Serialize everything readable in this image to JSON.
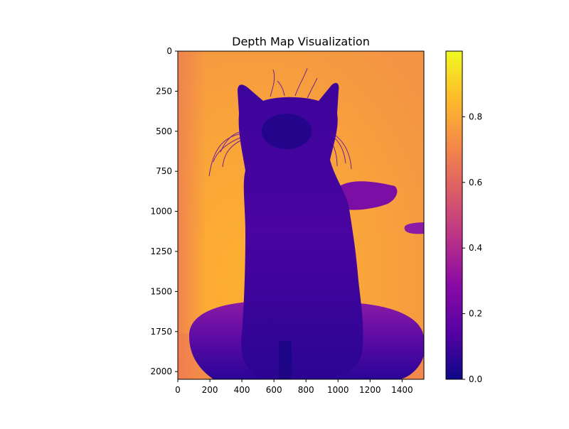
{
  "chart_data": {
    "type": "heatmap",
    "title": "Depth Map Visualization",
    "xlabel": "",
    "ylabel": "",
    "image_width": 1536,
    "image_height": 2048,
    "xlim": [
      0,
      1536
    ],
    "ylim": [
      2048,
      0
    ],
    "xticks": [
      0,
      200,
      400,
      600,
      800,
      1000,
      1200,
      1400
    ],
    "yticks": [
      0,
      250,
      500,
      750,
      1000,
      1250,
      1500,
      1750,
      2000
    ],
    "colormap": "plasma",
    "colorbar": {
      "range": [
        0.0,
        1.0
      ],
      "ticks": [
        0.0,
        0.2,
        0.4,
        0.6,
        0.8
      ],
      "tick_labels": [
        "0.0",
        "0.2",
        "0.4",
        "0.6",
        "0.8"
      ]
    },
    "image_content": "depth map of a kitten sitting on a round cushion; background high depth values (~0.75-0.85), subject low values (~0.05-0.25)",
    "colors": {
      "plasma": [
        "#0d0887",
        "#5402a3",
        "#8b0aa5",
        "#b93289",
        "#db5c68",
        "#f48849",
        "#febd2a",
        "#f0f921"
      ]
    }
  }
}
